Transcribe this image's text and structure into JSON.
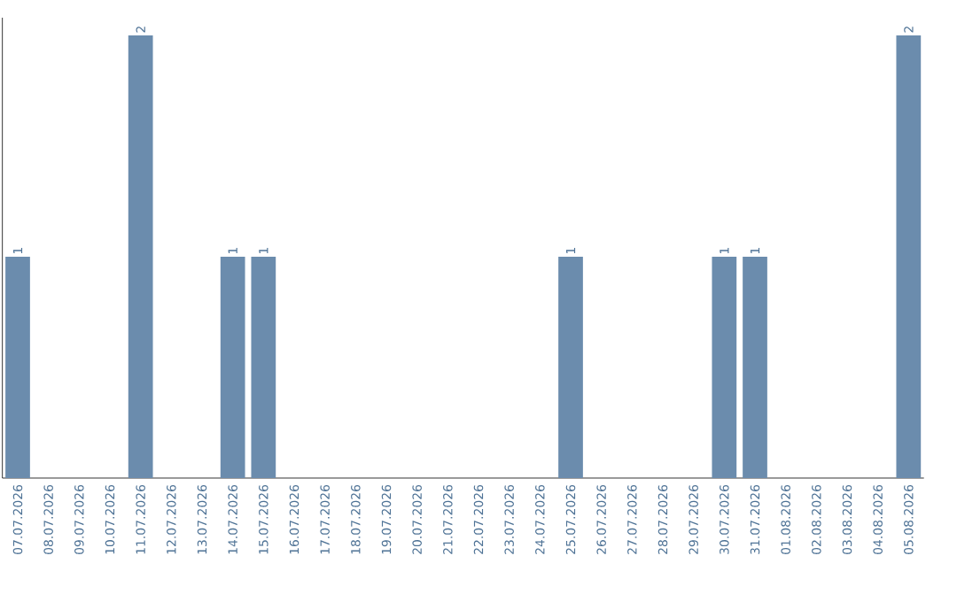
{
  "chart_data": {
    "type": "bar",
    "color": "#6b8cad",
    "categories": [
      "07.07.2026",
      "08.07.2026",
      "09.07.2026",
      "10.07.2026",
      "11.07.2026",
      "12.07.2026",
      "13.07.2026",
      "14.07.2026",
      "15.07.2026",
      "16.07.2026",
      "17.07.2026",
      "18.07.2026",
      "19.07.2026",
      "20.07.2026",
      "21.07.2026",
      "22.07.2026",
      "23.07.2026",
      "24.07.2026",
      "25.07.2026",
      "26.07.2026",
      "27.07.2026",
      "28.07.2026",
      "29.07.2026",
      "30.07.2026",
      "31.07.2026",
      "01.08.2026",
      "02.08.2026",
      "03.08.2026",
      "04.08.2026",
      "05.08.2026"
    ],
    "values": [
      1,
      0,
      0,
      0,
      2,
      0,
      0,
      1,
      1,
      0,
      0,
      0,
      0,
      0,
      0,
      0,
      0,
      0,
      1,
      0,
      0,
      0,
      0,
      1,
      1,
      0,
      0,
      0,
      0,
      2
    ],
    "value_labels": [
      "1",
      null,
      null,
      null,
      "2",
      null,
      null,
      "1",
      "1",
      null,
      null,
      null,
      null,
      null,
      null,
      null,
      null,
      null,
      "1",
      null,
      null,
      null,
      null,
      "1",
      "1",
      null,
      null,
      null,
      null,
      "2"
    ]
  }
}
